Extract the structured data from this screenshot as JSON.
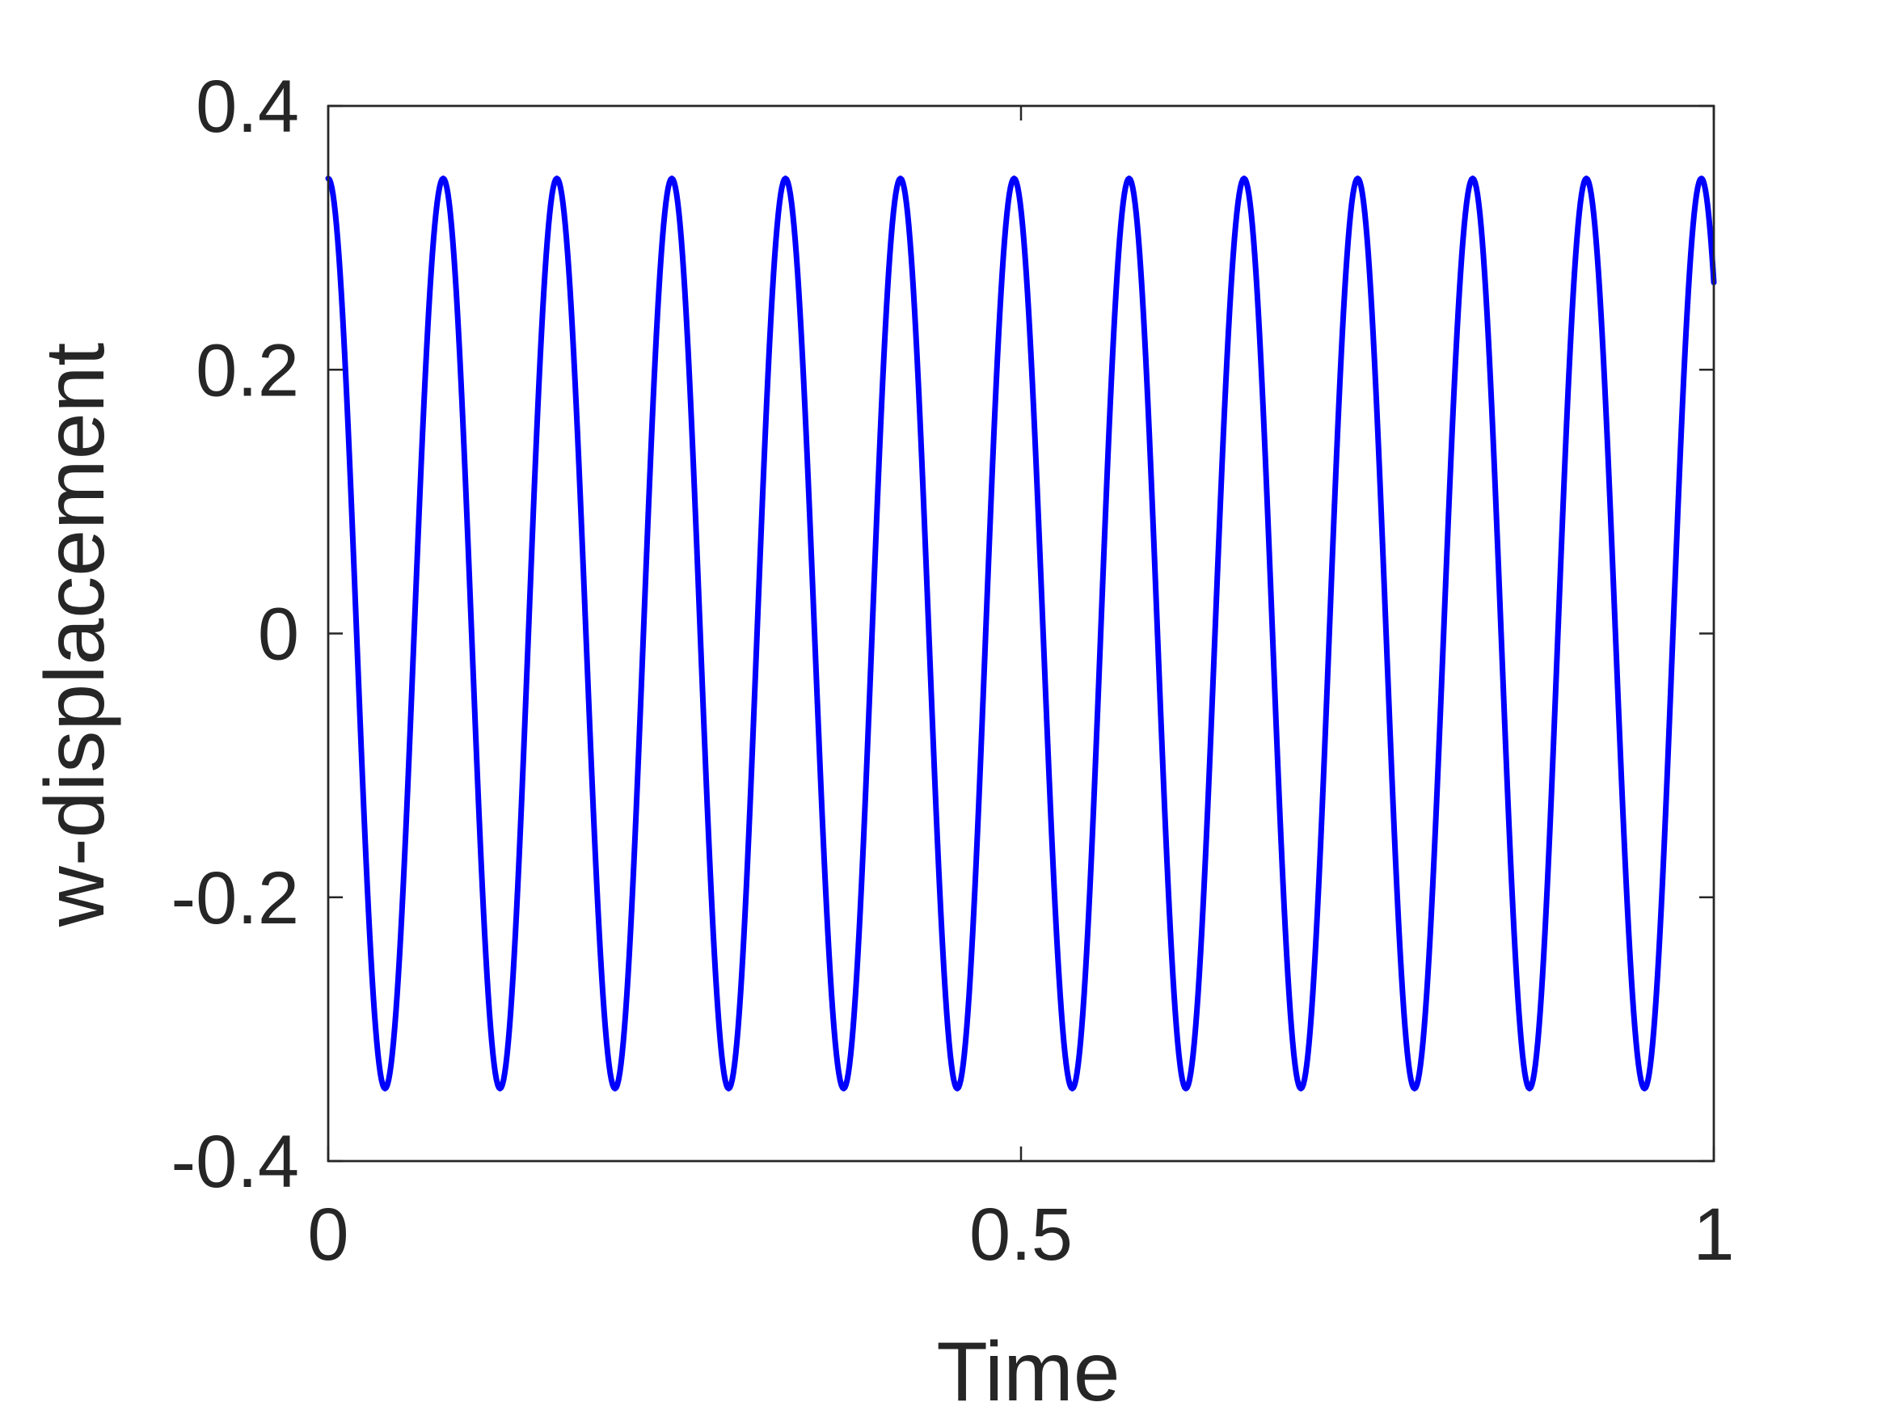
{
  "chart_data": {
    "type": "line",
    "title": "",
    "xlabel": "Time",
    "ylabel": "w-displacement",
    "xlim": [
      0,
      1
    ],
    "ylim": [
      -0.4,
      0.4
    ],
    "x_ticks": [
      0,
      0.5,
      1
    ],
    "x_tick_labels": [
      "0",
      "0.5",
      "1"
    ],
    "y_ticks": [
      -0.4,
      -0.2,
      0,
      0.2,
      0.4
    ],
    "y_tick_labels": [
      "-0.4",
      "-0.2",
      "0",
      "0.2",
      "0.4"
    ],
    "grid": false,
    "box": true,
    "series": [
      {
        "color": "#0000ff",
        "points": [
          [
            0.0,
            0.345
          ],
          [
            0.041,
            -0.345
          ],
          [
            0.083,
            0.345
          ],
          [
            0.124,
            -0.345
          ],
          [
            0.165,
            0.345
          ],
          [
            0.207,
            -0.345
          ],
          [
            0.248,
            0.345
          ],
          [
            0.289,
            -0.345
          ],
          [
            0.33,
            0.345
          ],
          [
            0.372,
            -0.345
          ],
          [
            0.413,
            0.345
          ],
          [
            0.454,
            -0.345
          ],
          [
            0.495,
            0.345
          ],
          [
            0.537,
            -0.345
          ],
          [
            0.578,
            0.345
          ],
          [
            0.619,
            -0.345
          ],
          [
            0.661,
            0.345
          ],
          [
            0.702,
            -0.345
          ],
          [
            0.743,
            0.345
          ],
          [
            0.784,
            -0.345
          ],
          [
            0.826,
            0.345
          ],
          [
            0.867,
            -0.345
          ],
          [
            0.908,
            0.345
          ],
          [
            0.95,
            -0.345
          ],
          [
            0.991,
            0.345
          ],
          [
            1.0,
            0.223
          ]
        ]
      }
    ]
  }
}
